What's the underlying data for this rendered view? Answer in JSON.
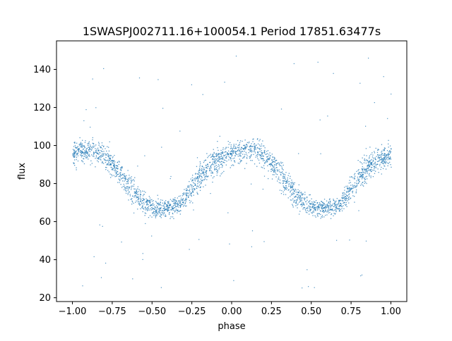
{
  "chart_data": {
    "type": "scatter",
    "title": "1SWASPJ002711.16+100054.1 Period 17851.63477s",
    "xlabel": "phase",
    "ylabel": "flux",
    "xlim": [
      -1.1,
      1.1
    ],
    "ylim": [
      18,
      155
    ],
    "xticks": [
      -1.0,
      -0.75,
      -0.5,
      -0.25,
      0.0,
      0.25,
      0.5,
      0.75,
      1.0
    ],
    "xtick_labels": [
      "−1.00",
      "−0.75",
      "−0.50",
      "−0.25",
      "0.00",
      "0.25",
      "0.50",
      "0.75",
      "1.00"
    ],
    "yticks": [
      20,
      40,
      60,
      80,
      100,
      120,
      140
    ],
    "ytick_labels": [
      "20",
      "40",
      "60",
      "80",
      "100",
      "120",
      "140"
    ],
    "grid": false,
    "marker_color": "#1f77b4",
    "series": [
      {
        "phase_range": [
          -1.0,
          1.0
        ],
        "profile": {
          "phase": [
            0.0,
            0.05,
            0.1,
            0.15,
            0.2,
            0.25,
            0.3,
            0.35,
            0.4,
            0.45,
            0.5,
            0.55,
            0.6,
            0.65,
            0.7,
            0.75,
            0.8,
            0.85,
            0.9,
            0.95,
            1.0
          ],
          "flux_center": [
            96,
            97.5,
            98,
            97,
            95,
            91,
            85,
            79,
            74,
            70,
            68,
            67.5,
            67.5,
            68,
            72,
            78,
            84,
            89,
            92,
            94,
            96
          ],
          "flux_spread": [
            7,
            7,
            7,
            7,
            7,
            7,
            8,
            8,
            7,
            6,
            5,
            5,
            5,
            5,
            6,
            7,
            8,
            8,
            8,
            7,
            7
          ]
        }
      }
    ]
  }
}
